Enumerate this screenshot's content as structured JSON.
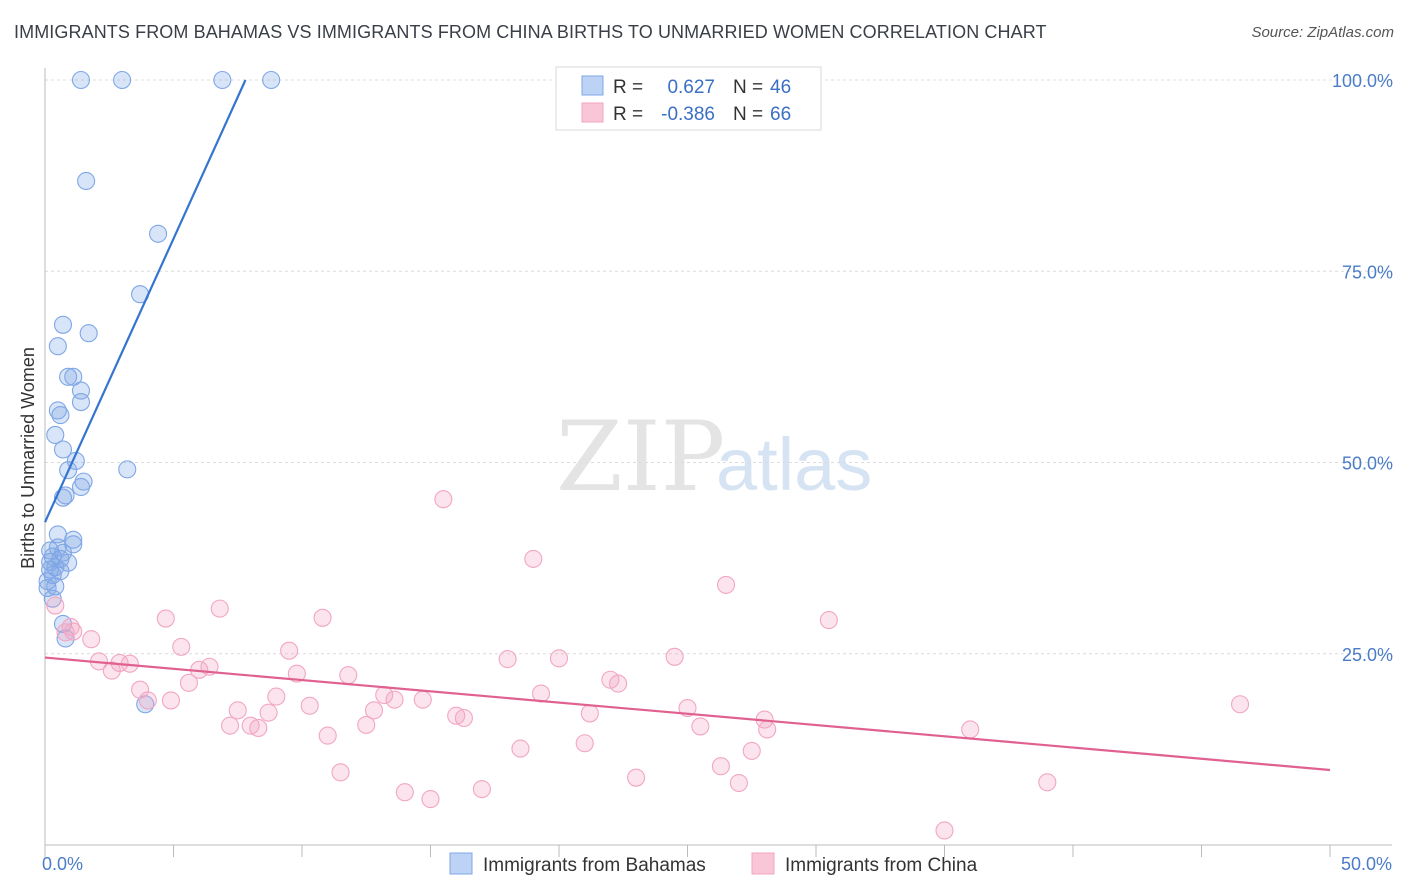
{
  "title": "IMMIGRANTS FROM BAHAMAS VS IMMIGRANTS FROM CHINA BIRTHS TO UNMARRIED WOMEN CORRELATION CHART",
  "source": "Source: ZipAtlas.com",
  "watermark": {
    "zip": "ZIP",
    "atlas": "atlas"
  },
  "chart_data": {
    "type": "scatter",
    "title": "IMMIGRANTS FROM BAHAMAS VS IMMIGRANTS FROM CHINA BIRTHS TO UNMARRIED WOMEN CORRELATION CHART",
    "xlabel": "",
    "ylabel": "Births to Unmarried Women",
    "xlim": [
      0,
      50
    ],
    "ylim": [
      0,
      100
    ],
    "x_tick_labels": {
      "min": "0.0%",
      "max": "50.0%"
    },
    "y_ticks": [
      25,
      50,
      75,
      100
    ],
    "y_tick_labels": [
      "25.0%",
      "50.0%",
      "75.0%",
      "100.0%"
    ],
    "grid": true,
    "legend_placement": "top-center",
    "stats": [
      {
        "r_label": "R =",
        "r_value": "0.627",
        "n_label": "N =",
        "n_value": "46"
      },
      {
        "r_label": "R =",
        "r_value": "-0.386",
        "n_label": "N =",
        "n_value": "66"
      }
    ],
    "series": [
      {
        "name": "Immigrants from Bahamas",
        "color": "#7fa7e6",
        "line_color": "#3575d0",
        "trend": {
          "x0": 0.0,
          "y0": 42.2,
          "x1": 7.8,
          "y1": 100.0
        },
        "points": [
          [
            1.4,
            100.0
          ],
          [
            3.0,
            100.0
          ],
          [
            6.9,
            100.0
          ],
          [
            8.8,
            100.0
          ],
          [
            1.6,
            86.8
          ],
          [
            4.4,
            79.9
          ],
          [
            3.7,
            72.0
          ],
          [
            0.7,
            68.0
          ],
          [
            1.7,
            66.9
          ],
          [
            0.5,
            65.2
          ],
          [
            0.9,
            61.2
          ],
          [
            1.1,
            61.2
          ],
          [
            1.4,
            59.4
          ],
          [
            1.4,
            57.9
          ],
          [
            0.5,
            56.8
          ],
          [
            0.6,
            56.2
          ],
          [
            0.4,
            53.6
          ],
          [
            0.7,
            51.7
          ],
          [
            1.2,
            50.2
          ],
          [
            0.9,
            49.0
          ],
          [
            3.2,
            49.1
          ],
          [
            1.5,
            47.5
          ],
          [
            1.4,
            46.8
          ],
          [
            0.8,
            45.7
          ],
          [
            0.7,
            45.4
          ],
          [
            0.5,
            40.6
          ],
          [
            1.1,
            39.9
          ],
          [
            1.1,
            39.3
          ],
          [
            0.5,
            38.9
          ],
          [
            0.7,
            38.2
          ],
          [
            0.3,
            37.7
          ],
          [
            0.6,
            37.4
          ],
          [
            0.2,
            37.0
          ],
          [
            0.9,
            36.9
          ],
          [
            0.4,
            36.3
          ],
          [
            0.2,
            36.0
          ],
          [
            0.3,
            35.3
          ],
          [
            0.1,
            34.5
          ],
          [
            0.4,
            33.8
          ],
          [
            0.1,
            33.6
          ],
          [
            0.3,
            32.2
          ],
          [
            0.7,
            28.9
          ],
          [
            0.8,
            27.0
          ],
          [
            3.9,
            18.4
          ],
          [
            0.2,
            38.5
          ],
          [
            0.6,
            35.8
          ]
        ]
      },
      {
        "name": "Immigrants from China",
        "color": "#f2a6c2",
        "line_color": "#e0608f",
        "trend": {
          "x0": 0.0,
          "y0": 24.5,
          "x1": 50.0,
          "y1": 9.8
        },
        "points": [
          [
            0.4,
            31.3
          ],
          [
            0.8,
            27.8
          ],
          [
            1.0,
            28.5
          ],
          [
            1.8,
            26.9
          ],
          [
            2.1,
            24.0
          ],
          [
            2.6,
            22.8
          ],
          [
            2.9,
            23.8
          ],
          [
            3.3,
            23.7
          ],
          [
            3.7,
            20.3
          ],
          [
            4.0,
            18.9
          ],
          [
            4.9,
            18.9
          ],
          [
            4.7,
            29.6
          ],
          [
            5.3,
            25.9
          ],
          [
            5.6,
            21.2
          ],
          [
            6.0,
            22.9
          ],
          [
            6.4,
            23.3
          ],
          [
            6.8,
            30.9
          ],
          [
            7.2,
            15.6
          ],
          [
            7.5,
            17.6
          ],
          [
            8.0,
            15.6
          ],
          [
            8.3,
            15.3
          ],
          [
            8.7,
            17.3
          ],
          [
            9.0,
            19.4
          ],
          [
            9.5,
            25.4
          ],
          [
            9.8,
            22.4
          ],
          [
            10.3,
            18.2
          ],
          [
            10.8,
            29.7
          ],
          [
            11.0,
            14.3
          ],
          [
            11.5,
            9.5
          ],
          [
            11.8,
            22.2
          ],
          [
            12.5,
            15.7
          ],
          [
            12.8,
            17.6
          ],
          [
            13.2,
            19.6
          ],
          [
            13.6,
            19.0
          ],
          [
            14.0,
            6.9
          ],
          [
            14.7,
            19.0
          ],
          [
            15.0,
            6.0
          ],
          [
            15.5,
            45.2
          ],
          [
            16.0,
            16.9
          ],
          [
            16.3,
            16.6
          ],
          [
            17.0,
            7.3
          ],
          [
            18.0,
            24.3
          ],
          [
            18.5,
            12.6
          ],
          [
            19.0,
            37.4
          ],
          [
            19.3,
            19.8
          ],
          [
            20.0,
            24.4
          ],
          [
            21.0,
            13.3
          ],
          [
            21.2,
            17.2
          ],
          [
            22.0,
            21.6
          ],
          [
            22.3,
            21.1
          ],
          [
            23.0,
            8.8
          ],
          [
            24.5,
            24.6
          ],
          [
            25.0,
            17.9
          ],
          [
            25.5,
            15.5
          ],
          [
            26.3,
            10.3
          ],
          [
            26.5,
            34.0
          ],
          [
            27.0,
            8.1
          ],
          [
            27.5,
            12.3
          ],
          [
            28.0,
            16.4
          ],
          [
            28.1,
            15.1
          ],
          [
            30.5,
            29.4
          ],
          [
            35.0,
            1.9
          ],
          [
            36.0,
            15.1
          ],
          [
            39.0,
            8.2
          ],
          [
            46.5,
            18.4
          ],
          [
            1.1,
            27.9
          ]
        ]
      }
    ]
  },
  "bottom_legend": [
    {
      "label": "Immigrants from Bahamas",
      "color": "#bcd3f5"
    },
    {
      "label": "Immigrants from China",
      "color": "#f8c6d6"
    }
  ]
}
